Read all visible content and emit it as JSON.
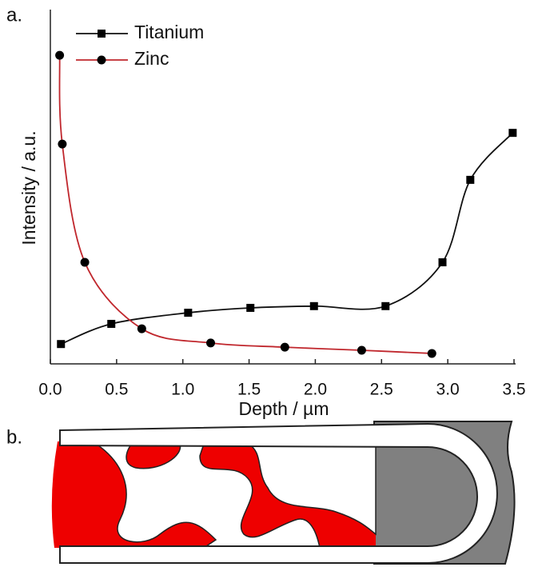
{
  "chart_data": {
    "type": "line",
    "panel_labels": [
      "a.",
      "b."
    ],
    "xlabel": "Depth / µm",
    "ylabel": "Intensity / a.u.",
    "xlim": [
      0,
      3.5
    ],
    "xticks": [
      {
        "value": 0,
        "label": "0.0"
      },
      0.5,
      {
        "value": 1,
        "label": "1.0"
      },
      1.5,
      {
        "value": 2,
        "label": "2.0"
      },
      2.5,
      {
        "value": 3,
        "label": "3.0"
      },
      3.5
    ],
    "ylim": [
      0,
      100
    ],
    "legend": "top-left",
    "series": [
      {
        "name": "Titanium",
        "color": "#111111",
        "marker": "square",
        "marker_color": "#000000",
        "x": [
          0.08,
          0.46,
          1.04,
          1.51,
          1.99,
          2.53,
          2.96,
          3.17,
          3.49
        ],
        "values": [
          5.7,
          11.5,
          14.7,
          16.1,
          16.6,
          16.6,
          29.2,
          52.9,
          66.4
        ]
      },
      {
        "name": "Zinc",
        "color": "#c0272d",
        "marker": "circle",
        "marker_color": "#000000",
        "x": [
          0.07,
          0.09,
          0.26,
          0.69,
          1.21,
          1.77,
          2.35,
          2.88
        ],
        "values": [
          88.7,
          63.2,
          29.2,
          10.1,
          6.0,
          4.8,
          3.9,
          3.0
        ]
      }
    ]
  }
}
